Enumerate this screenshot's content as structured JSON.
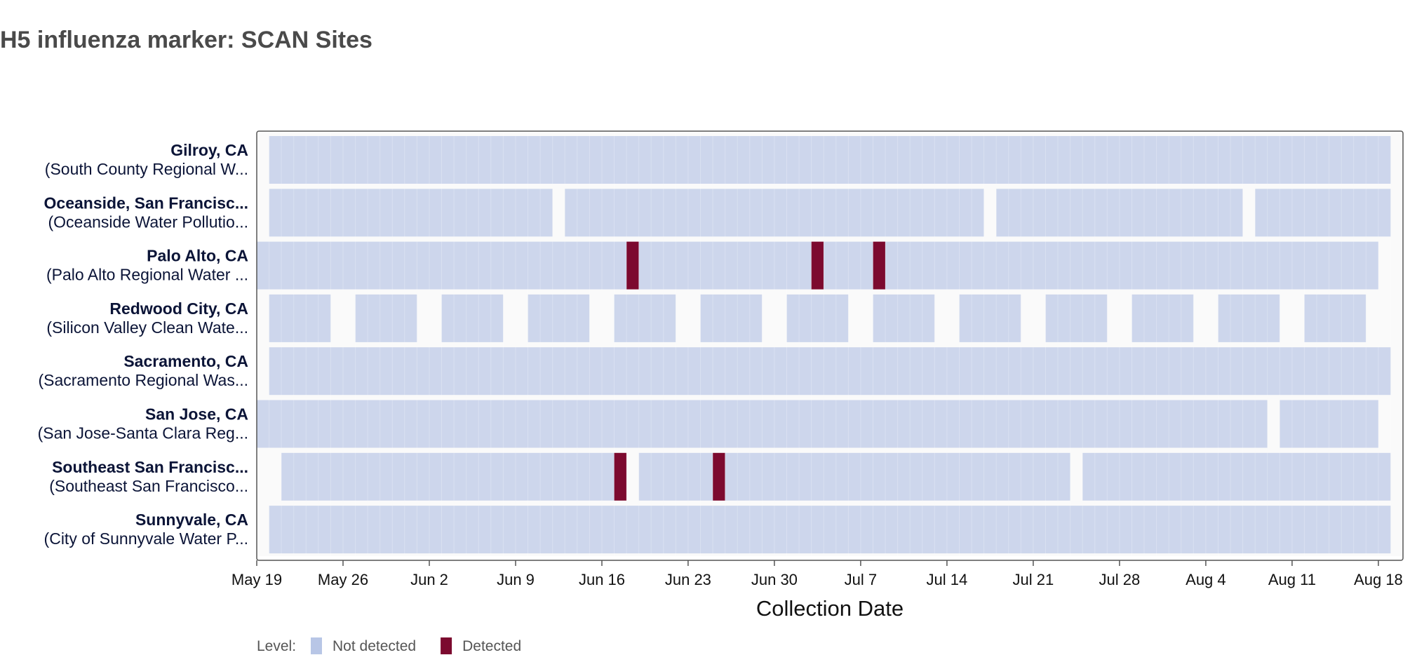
{
  "title": "H5 influenza marker: SCAN Sites",
  "chart_data": {
    "type": "heatmap",
    "title": "H5 influenza marker: SCAN Sites",
    "xlabel": "Collection Date",
    "x_range": [
      "2024-05-19",
      "2024-08-20"
    ],
    "x_ticks": [
      "May 19",
      "May 26",
      "Jun 2",
      "Jun 9",
      "Jun 16",
      "Jun 23",
      "Jun 30",
      "Jul 7",
      "Jul 14",
      "Jul 21",
      "Jul 28",
      "Aug 4",
      "Aug 11",
      "Aug 18"
    ],
    "colors": {
      "Not detected": "#cdd6ec",
      "Detected": "#7c0a2f",
      "band": "#fafafa",
      "frame": "#555555"
    },
    "legend": {
      "title": "Level:",
      "entries": [
        {
          "label": "Not detected",
          "color": "#b8c6e6"
        },
        {
          "label": "Detected",
          "color": "#7c0a2f"
        }
      ]
    },
    "sites": [
      {
        "name": "Gilroy, CA",
        "plant": "(South County Regional W...",
        "samples": [
          {
            "start": "2024-05-20",
            "end": "2024-08-19",
            "level": "Not detected"
          }
        ]
      },
      {
        "name": "Oceanside, San Francisc...",
        "plant": "(Oceanside Water Pollutio...",
        "samples": [
          {
            "start": "2024-05-20",
            "end": "2024-06-12",
            "level": "Not detected"
          },
          {
            "start": "2024-06-13",
            "end": "2024-07-17",
            "level": "Not detected"
          },
          {
            "start": "2024-07-18",
            "end": "2024-08-07",
            "level": "Not detected"
          },
          {
            "start": "2024-08-08",
            "end": "2024-08-19",
            "level": "Not detected"
          }
        ]
      },
      {
        "name": "Palo Alto, CA",
        "plant": "(Palo Alto Regional Water ...",
        "samples": [
          {
            "start": "2024-05-19",
            "end": "2024-06-18",
            "level": "Not detected"
          },
          {
            "start": "2024-06-18",
            "end": "2024-06-19",
            "level": "Detected"
          },
          {
            "start": "2024-06-19",
            "end": "2024-07-03",
            "level": "Not detected"
          },
          {
            "start": "2024-07-03",
            "end": "2024-07-04",
            "level": "Detected"
          },
          {
            "start": "2024-07-04",
            "end": "2024-07-08",
            "level": "Not detected"
          },
          {
            "start": "2024-07-08",
            "end": "2024-07-09",
            "level": "Detected"
          },
          {
            "start": "2024-07-09",
            "end": "2024-08-18",
            "level": "Not detected"
          }
        ]
      },
      {
        "name": "Redwood City, CA",
        "plant": "(Silicon Valley Clean Wate...",
        "samples": [
          {
            "start": "2024-05-20",
            "end": "2024-05-25",
            "level": "Not detected"
          },
          {
            "start": "2024-05-27",
            "end": "2024-06-01",
            "level": "Not detected"
          },
          {
            "start": "2024-06-03",
            "end": "2024-06-08",
            "level": "Not detected"
          },
          {
            "start": "2024-06-10",
            "end": "2024-06-15",
            "level": "Not detected"
          },
          {
            "start": "2024-06-17",
            "end": "2024-06-22",
            "level": "Not detected"
          },
          {
            "start": "2024-06-24",
            "end": "2024-06-29",
            "level": "Not detected"
          },
          {
            "start": "2024-07-01",
            "end": "2024-07-06",
            "level": "Not detected"
          },
          {
            "start": "2024-07-08",
            "end": "2024-07-13",
            "level": "Not detected"
          },
          {
            "start": "2024-07-15",
            "end": "2024-07-20",
            "level": "Not detected"
          },
          {
            "start": "2024-07-22",
            "end": "2024-07-27",
            "level": "Not detected"
          },
          {
            "start": "2024-07-29",
            "end": "2024-08-03",
            "level": "Not detected"
          },
          {
            "start": "2024-08-05",
            "end": "2024-08-10",
            "level": "Not detected"
          },
          {
            "start": "2024-08-12",
            "end": "2024-08-17",
            "level": "Not detected"
          }
        ]
      },
      {
        "name": "Sacramento, CA",
        "plant": "(Sacramento Regional Was...",
        "samples": [
          {
            "start": "2024-05-20",
            "end": "2024-08-19",
            "level": "Not detected"
          }
        ]
      },
      {
        "name": "San Jose, CA",
        "plant": "(San Jose-Santa Clara Reg...",
        "samples": [
          {
            "start": "2024-05-19",
            "end": "2024-08-09",
            "level": "Not detected"
          },
          {
            "start": "2024-08-10",
            "end": "2024-08-18",
            "level": "Not detected"
          }
        ]
      },
      {
        "name": "Southeast San Francisc...",
        "plant": "(Southeast San Francisco...",
        "samples": [
          {
            "start": "2024-05-21",
            "end": "2024-06-17",
            "level": "Not detected"
          },
          {
            "start": "2024-06-17",
            "end": "2024-06-18",
            "level": "Detected"
          },
          {
            "start": "2024-06-19",
            "end": "2024-06-25",
            "level": "Not detected"
          },
          {
            "start": "2024-06-25",
            "end": "2024-06-26",
            "level": "Detected"
          },
          {
            "start": "2024-06-26",
            "end": "2024-07-24",
            "level": "Not detected"
          },
          {
            "start": "2024-07-25",
            "end": "2024-08-19",
            "level": "Not detected"
          }
        ]
      },
      {
        "name": "Sunnyvale, CA",
        "plant": "(City of Sunnyvale Water P...",
        "samples": [
          {
            "start": "2024-05-20",
            "end": "2024-08-19",
            "level": "Not detected"
          }
        ]
      }
    ]
  }
}
